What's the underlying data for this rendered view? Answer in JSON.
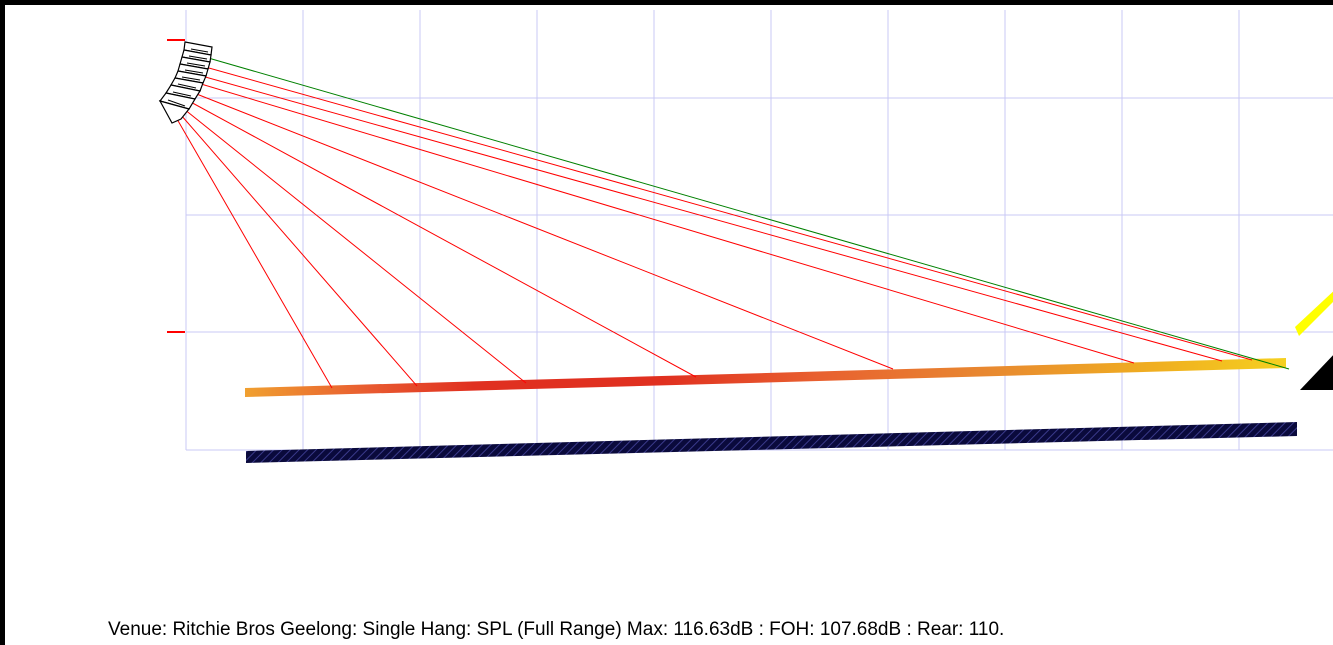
{
  "caption": "Venue: Ritchie Bros Geelong: Single Hang: SPL (Full Range) Max: 116.63dB : FOH: 107.68dB : Rear: 110.",
  "colors": {
    "grid": "#c8c8f5",
    "ray": "#ff0000",
    "ray_top": "#008000",
    "floor_surface": "#0a0a3c",
    "speaker_outline": "#000000",
    "tick_marks": "#ff0000",
    "overlay_yellow": "#ffff00"
  },
  "audience_spl_gradient": [
    "#f0a030",
    "#e85a30",
    "#e03020",
    "#e03020",
    "#e86030",
    "#e88a30",
    "#f0b020",
    "#f5d020"
  ],
  "icons": {
    "speaker_array": "line-array-icon",
    "foh_marker": "triangle-icon"
  }
}
